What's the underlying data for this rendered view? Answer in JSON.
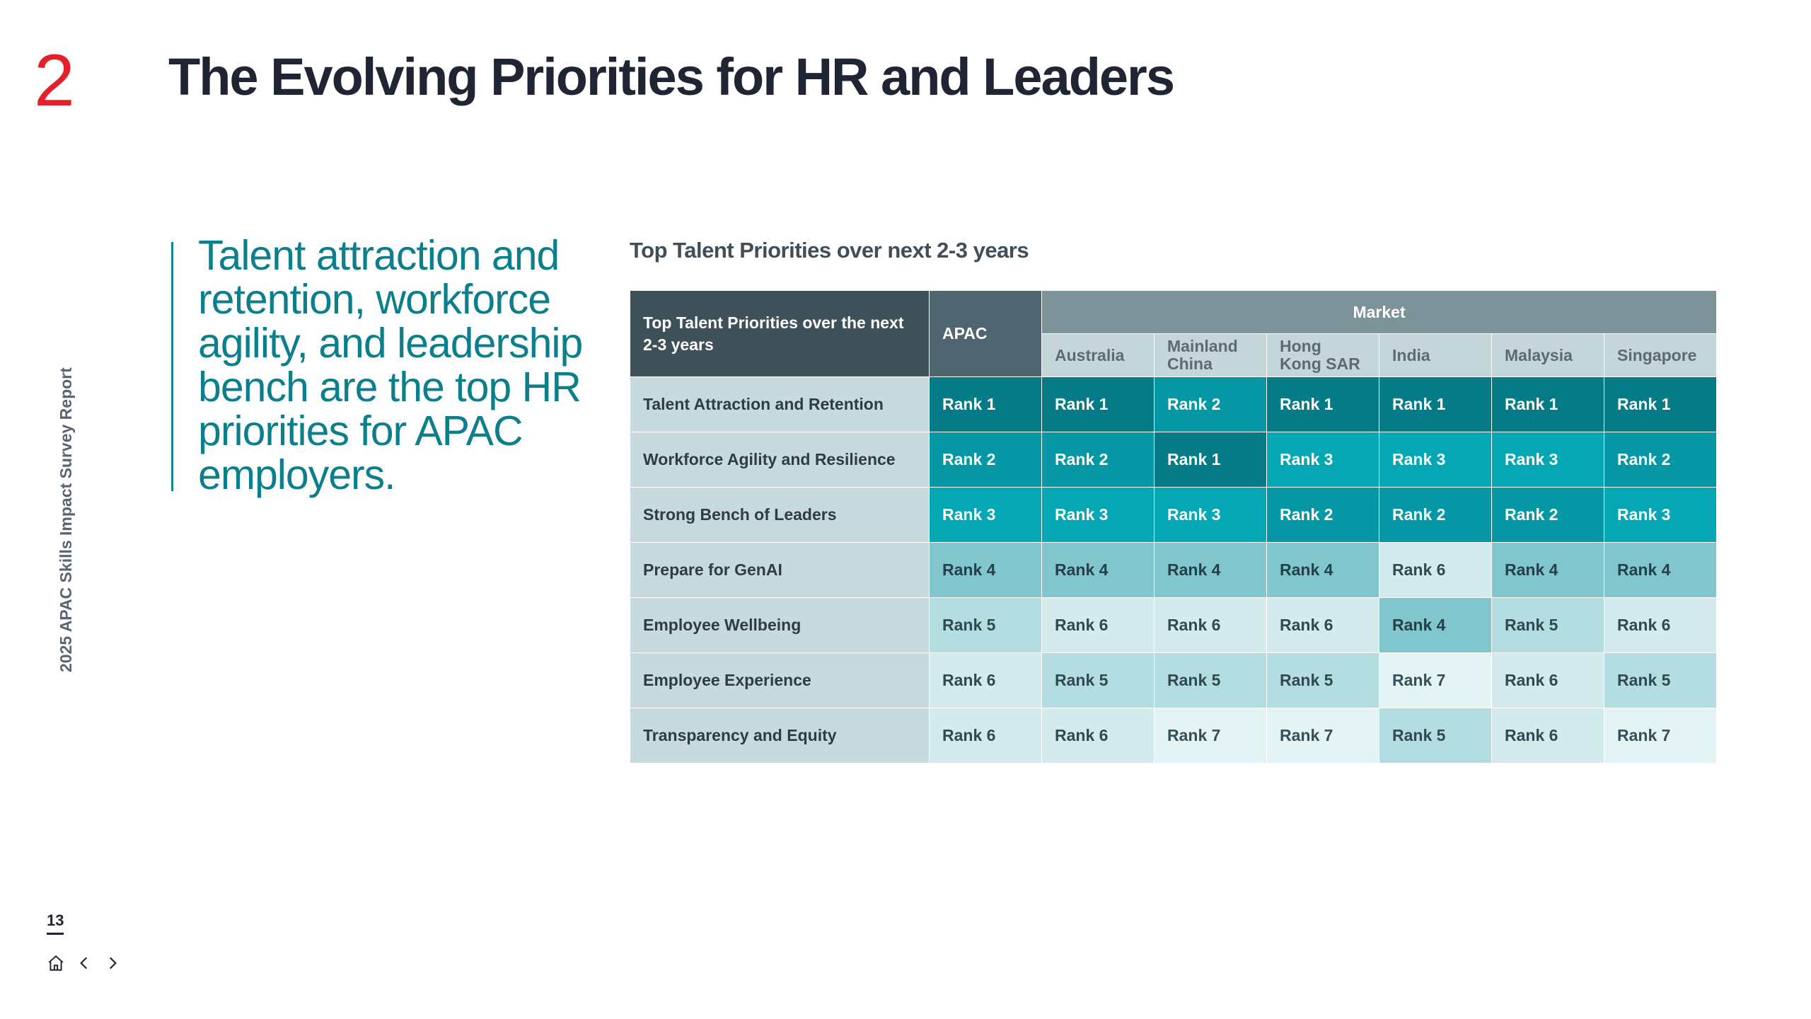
{
  "header": {
    "section_number": "2",
    "title": "The Evolving Priorities for HR and Leaders"
  },
  "sidebar": {
    "report_name": "2025 APAC Skills Impact Survey Report",
    "page_number": "13"
  },
  "lead_text": "Talent attraction and retention, workforce agility, and leadership bench are the top HR priorities for APAC employers.",
  "table": {
    "title": "Top Talent Priorities over next 2-3 years",
    "header_main": "Top Talent Priorities over the next 2-3 years",
    "header_apac": "APAC",
    "header_market": "Market",
    "markets": [
      "Australia",
      "Mainland China",
      "Hong Kong SAR",
      "India",
      "Malaysia",
      "Singapore"
    ],
    "rows": [
      {
        "label": "Talent Attraction and Retention",
        "cells": [
          "Rank 1",
          "Rank 1",
          "Rank 2",
          "Rank 1",
          "Rank 1",
          "Rank 1",
          "Rank 1"
        ]
      },
      {
        "label": "Workforce Agility and Resilience",
        "cells": [
          "Rank 2",
          "Rank 2",
          "Rank 1",
          "Rank 3",
          "Rank 3",
          "Rank 3",
          "Rank 2"
        ]
      },
      {
        "label": "Strong Bench of Leaders",
        "cells": [
          "Rank 3",
          "Rank 3",
          "Rank 3",
          "Rank 2",
          "Rank 2",
          "Rank 2",
          "Rank 3"
        ]
      },
      {
        "label": "Prepare for GenAI",
        "cells": [
          "Rank 4",
          "Rank 4",
          "Rank 4",
          "Rank 4",
          "Rank 6",
          "Rank 4",
          "Rank 4"
        ]
      },
      {
        "label": "Employee Wellbeing",
        "cells": [
          "Rank 5",
          "Rank 6",
          "Rank 6",
          "Rank 6",
          "Rank 4",
          "Rank 5",
          "Rank 6"
        ]
      },
      {
        "label": "Employee Experience",
        "cells": [
          "Rank 6",
          "Rank 5",
          "Rank 5",
          "Rank 5",
          "Rank 7",
          "Rank 6",
          "Rank 5"
        ]
      },
      {
        "label": "Transparency and Equity",
        "cells": [
          "Rank 6",
          "Rank 6",
          "Rank 7",
          "Rank 7",
          "Rank 5",
          "Rank 6",
          "Rank 7"
        ]
      }
    ]
  },
  "colors": {
    "accent_red": "#e4202a",
    "accent_teal": "#0b7f8c"
  },
  "nav": {
    "icons": [
      "home-icon",
      "chevron-left-icon",
      "chevron-right-icon"
    ]
  }
}
